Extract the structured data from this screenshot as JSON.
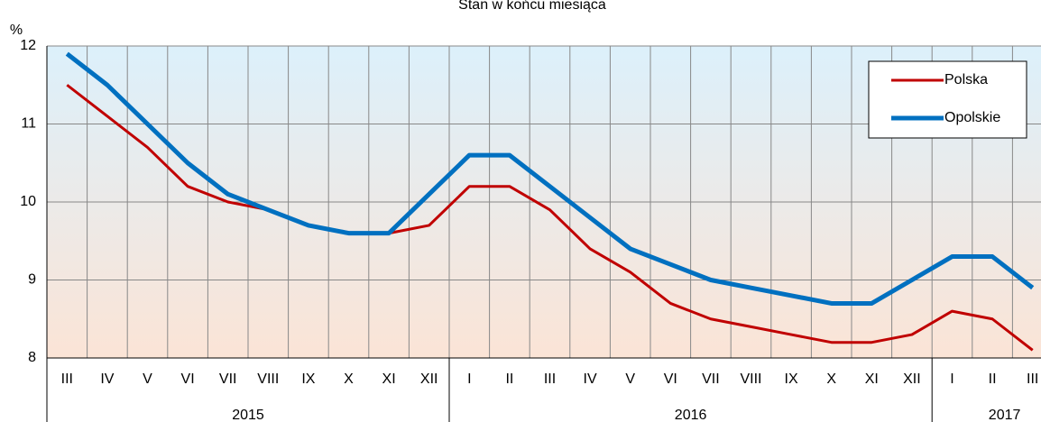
{
  "chart_data": {
    "type": "line",
    "title": "Stan w końcu miesiąca",
    "y_label": "%",
    "categories": [
      "III",
      "IV",
      "V",
      "VI",
      "VII",
      "VIII",
      "IX",
      "X",
      "XI",
      "XII",
      "I",
      "II",
      "III",
      "IV",
      "V",
      "VI",
      "VII",
      "VIII",
      "IX",
      "X",
      "XI",
      "XII",
      "I",
      "II",
      "III"
    ],
    "x_groups": [
      {
        "label": "2015",
        "span": 10
      },
      {
        "label": "2016",
        "span": 12
      },
      {
        "label": "2017",
        "span": 3
      }
    ],
    "series": [
      {
        "name": "Polska",
        "color": "#c00000",
        "width": 3,
        "values": [
          11.5,
          11.1,
          10.7,
          10.2,
          10.0,
          9.9,
          9.7,
          9.6,
          9.6,
          9.7,
          10.2,
          10.2,
          9.9,
          9.4,
          9.1,
          8.7,
          8.5,
          8.4,
          8.3,
          8.2,
          8.2,
          8.3,
          8.6,
          8.5,
          8.1
        ]
      },
      {
        "name": "Opolskie",
        "color": "#0070c0",
        "width": 5,
        "values": [
          11.9,
          11.5,
          11.0,
          10.5,
          10.1,
          9.9,
          9.7,
          9.6,
          9.6,
          10.1,
          10.6,
          10.6,
          10.2,
          9.8,
          9.4,
          9.2,
          9.0,
          8.9,
          8.8,
          8.7,
          8.7,
          9.0,
          9.3,
          9.3,
          8.9
        ]
      }
    ],
    "ylim": [
      8,
      12
    ],
    "yticks": [
      8,
      9,
      10,
      11,
      12
    ],
    "grid": true,
    "legend": "top-right"
  }
}
